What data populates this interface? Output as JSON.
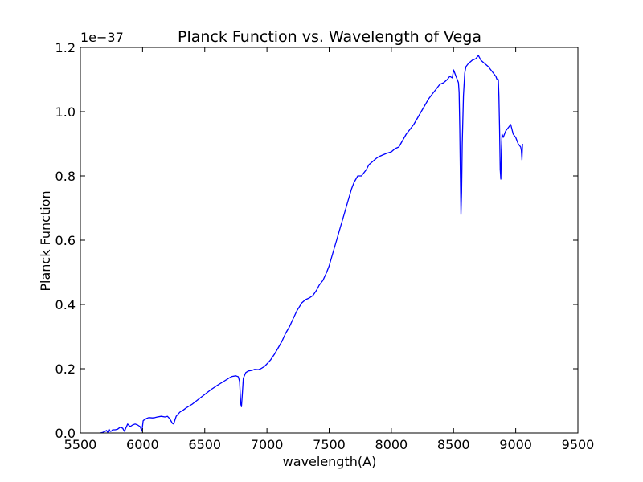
{
  "chart_data": {
    "type": "line",
    "title": "Planck Function vs. Wavelength of Vega",
    "xlabel": "wavelength(A)",
    "ylabel": "Planck Function",
    "offset_text": "1e−37",
    "multiplier": 1e-37,
    "xlim": [
      5500,
      9500
    ],
    "ylim": [
      0.0,
      1.2
    ],
    "xticks": [
      5500,
      6000,
      6500,
      7000,
      7500,
      8000,
      8500,
      9000,
      9500
    ],
    "xtick_labels": [
      "5500",
      "6000",
      "6500",
      "7000",
      "7500",
      "8000",
      "8500",
      "9000",
      "9500"
    ],
    "yticks": [
      0.0,
      0.2,
      0.4,
      0.6,
      0.8,
      1.0,
      1.2
    ],
    "ytick_labels": [
      "0.0",
      "0.2",
      "0.4",
      "0.6",
      "0.8",
      "1.0",
      "1.2"
    ],
    "grid": false,
    "legend": "none",
    "series_color": "#0000ff",
    "series": [
      {
        "x": [
          5660,
          5680,
          5700,
          5710,
          5720,
          5730,
          5740,
          5750,
          5760,
          5780,
          5800,
          5820,
          5840,
          5855,
          5865,
          5880,
          5900,
          5920,
          5940,
          5960,
          5980,
          5995,
          6005,
          6010,
          6020,
          6030,
          6050,
          6080,
          6100,
          6120,
          6150,
          6180,
          6200,
          6210,
          6225,
          6240,
          6250,
          6260,
          6270,
          6300,
          6330,
          6350,
          6380,
          6400,
          6450,
          6500,
          6550,
          6600,
          6650,
          6700,
          6720,
          6750,
          6770,
          6780,
          6785,
          6790,
          6795,
          6800,
          6810,
          6830,
          6850,
          6880,
          6900,
          6930,
          6950,
          6980,
          7000,
          7030,
          7060,
          7090,
          7120,
          7150,
          7180,
          7210,
          7240,
          7280,
          7310,
          7340,
          7370,
          7400,
          7420,
          7450,
          7480,
          7500,
          7530,
          7560,
          7590,
          7620,
          7650,
          7680,
          7700,
          7730,
          7760,
          7780,
          7800,
          7820,
          7850,
          7880,
          7900,
          7930,
          7960,
          8000,
          8030,
          8060,
          8090,
          8120,
          8150,
          8180,
          8210,
          8240,
          8270,
          8300,
          8330,
          8360,
          8390,
          8420,
          8450,
          8470,
          8490,
          8500,
          8510,
          8520,
          8530,
          8540,
          8545,
          8550,
          8555,
          8560,
          8565,
          8570,
          8580,
          8590,
          8600,
          8620,
          8650,
          8680,
          8700,
          8720,
          8750,
          8780,
          8800,
          8820,
          8840,
          8850,
          8860,
          8865,
          8870,
          8875,
          8880,
          8885,
          8890,
          8900,
          8920,
          8940,
          8960,
          8980,
          9000,
          9020,
          9040,
          9045,
          9050,
          9055
        ],
        "y": [
          0.0,
          0.002,
          0.005,
          0.008,
          0.002,
          0.012,
          0.005,
          0.006,
          0.01,
          0.01,
          0.012,
          0.018,
          0.015,
          0.005,
          0.015,
          0.028,
          0.02,
          0.025,
          0.028,
          0.025,
          0.02,
          0.006,
          0.038,
          0.04,
          0.042,
          0.045,
          0.048,
          0.047,
          0.048,
          0.05,
          0.052,
          0.05,
          0.052,
          0.048,
          0.04,
          0.03,
          0.028,
          0.04,
          0.052,
          0.065,
          0.072,
          0.078,
          0.085,
          0.09,
          0.105,
          0.12,
          0.135,
          0.148,
          0.16,
          0.172,
          0.176,
          0.178,
          0.175,
          0.16,
          0.12,
          0.09,
          0.082,
          0.11,
          0.17,
          0.188,
          0.193,
          0.195,
          0.198,
          0.197,
          0.2,
          0.207,
          0.215,
          0.228,
          0.245,
          0.265,
          0.285,
          0.31,
          0.33,
          0.355,
          0.38,
          0.405,
          0.415,
          0.42,
          0.428,
          0.445,
          0.46,
          0.475,
          0.5,
          0.52,
          0.56,
          0.6,
          0.64,
          0.68,
          0.72,
          0.76,
          0.78,
          0.8,
          0.8,
          0.81,
          0.82,
          0.835,
          0.845,
          0.855,
          0.86,
          0.865,
          0.87,
          0.875,
          0.885,
          0.89,
          0.91,
          0.93,
          0.945,
          0.96,
          0.98,
          1.0,
          1.02,
          1.04,
          1.055,
          1.07,
          1.085,
          1.09,
          1.1,
          1.11,
          1.105,
          1.13,
          1.12,
          1.11,
          1.1,
          1.09,
          1.06,
          0.95,
          0.8,
          0.68,
          0.75,
          0.9,
          1.05,
          1.12,
          1.14,
          1.15,
          1.16,
          1.165,
          1.175,
          1.16,
          1.15,
          1.14,
          1.13,
          1.12,
          1.11,
          1.1,
          1.1,
          1.05,
          0.95,
          0.82,
          0.79,
          0.88,
          0.93,
          0.92,
          0.94,
          0.95,
          0.96,
          0.93,
          0.92,
          0.9,
          0.89,
          0.88,
          0.85,
          0.9
        ]
      }
    ]
  }
}
